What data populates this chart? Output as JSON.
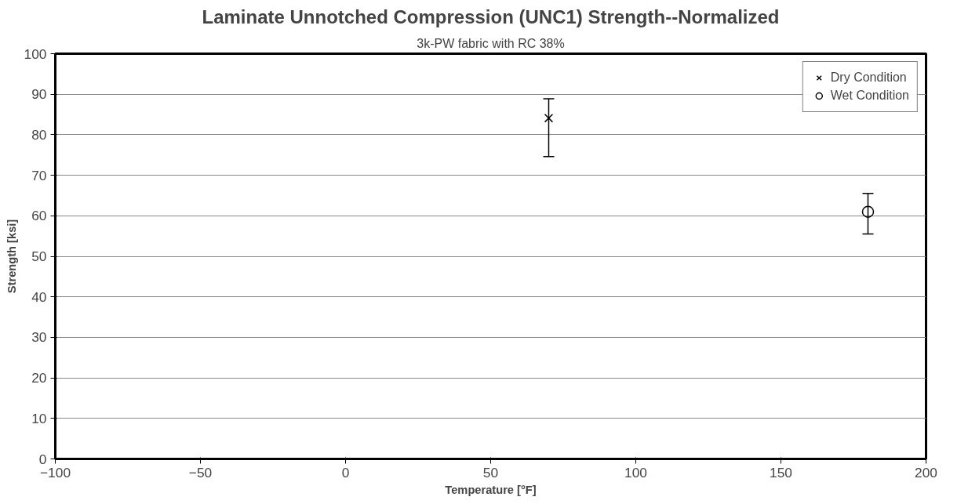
{
  "chart_data": {
    "type": "scatter",
    "title": "Laminate Unnotched Compression (UNC1) Strength--Normalized",
    "subtitle": "3k-PW fabric with RC 38%",
    "xlabel": "Temperature [°F]",
    "ylabel": "Strength [ksi]",
    "series": [
      {
        "name": "Dry Condition",
        "color": "#000000",
        "marker": "cross",
        "x": [
          70
        ],
        "values": [
          84.1
        ],
        "errors": [
          [
            74.6,
            88.9
          ]
        ]
      },
      {
        "name": "Wet Condition",
        "color": "#000000",
        "marker": "circle",
        "x": [
          180
        ],
        "values": [
          61
        ],
        "errors": [
          [
            55.5,
            65.5
          ]
        ]
      }
    ],
    "xlim": [
      -100,
      200
    ],
    "xticks": [
      -100,
      -50,
      0,
      50,
      100,
      150,
      200
    ],
    "ylim": [
      0,
      100
    ],
    "yticks": [
      0,
      10,
      20,
      30,
      40,
      50,
      60,
      70,
      80,
      90,
      100
    ],
    "grid": "y",
    "legend": "top right"
  }
}
